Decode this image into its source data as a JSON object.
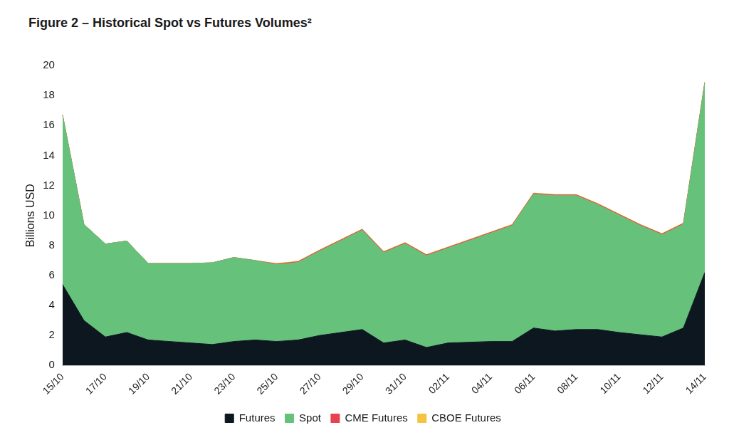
{
  "chart_data": {
    "type": "area",
    "title": "Figure 2 – Historical Spot vs Futures Volumes²",
    "y_label": "Billions USD",
    "categories": [
      "15/10",
      null,
      "17/10",
      null,
      "19/10",
      null,
      "21/10",
      null,
      "23/10",
      null,
      "25/10",
      null,
      "27/10",
      null,
      "29/10",
      null,
      "31/10",
      null,
      "02/11",
      null,
      "04/11",
      null,
      "06/11",
      null,
      "08/11",
      null,
      "10/11",
      null,
      "12/11",
      null,
      "14/11"
    ],
    "series": [
      {
        "name": "Futures",
        "color": "#0d1720",
        "values": [
          5.4,
          3.0,
          1.9,
          2.2,
          1.7,
          1.6,
          1.5,
          1.4,
          1.6,
          1.7,
          1.6,
          1.7,
          2.0,
          2.2,
          2.4,
          1.5,
          1.7,
          1.2,
          1.5,
          1.55,
          1.6,
          1.6,
          2.5,
          2.3,
          2.4,
          2.4,
          2.2,
          2.05,
          1.9,
          2.5,
          6.2
        ]
      },
      {
        "name": "Spot",
        "color": "#66c17a",
        "values": [
          11.3,
          6.4,
          6.2,
          6.1,
          5.1,
          5.2,
          5.3,
          5.45,
          5.6,
          5.3,
          5.12,
          5.17,
          5.62,
          6.12,
          6.62,
          6.02,
          6.42,
          6.12,
          6.32,
          6.77,
          7.22,
          7.72,
          8.92,
          9.02,
          8.92,
          8.32,
          7.82,
          7.27,
          6.82,
          6.92,
          12.62
        ]
      },
      {
        "name": "CME Futures",
        "color": "#e8414f",
        "values": [
          0,
          0,
          0,
          0,
          0,
          0,
          0,
          0,
          0,
          0,
          0.05,
          0.05,
          0.05,
          0.05,
          0.05,
          0.05,
          0.05,
          0.05,
          0.05,
          0.05,
          0.05,
          0.05,
          0.05,
          0.05,
          0.05,
          0.05,
          0.05,
          0.05,
          0.05,
          0.05,
          0.05
        ]
      },
      {
        "name": "CBOE Futures",
        "color": "#f5c242",
        "values": [
          0,
          0,
          0,
          0,
          0,
          0,
          0,
          0,
          0,
          0,
          0.03,
          0.03,
          0.03,
          0.03,
          0.03,
          0.03,
          0.03,
          0.03,
          0.03,
          0.03,
          0.03,
          0.03,
          0.03,
          0.03,
          0.03,
          0.03,
          0.03,
          0.03,
          0.03,
          0.03,
          0.03
        ]
      }
    ],
    "ylim": [
      0,
      20
    ],
    "yticks": [
      0,
      2,
      4,
      6,
      8,
      10,
      12,
      14,
      16,
      18,
      20
    ],
    "stacked": true,
    "grid": false,
    "legend": "bottom"
  }
}
